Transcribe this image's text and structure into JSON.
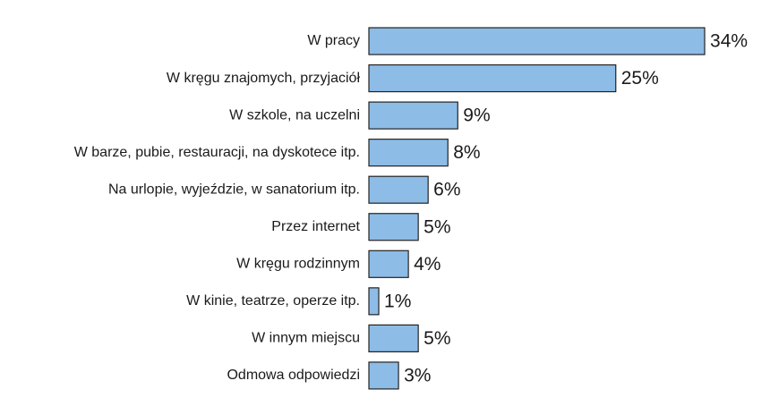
{
  "chart_data": {
    "type": "bar",
    "orientation": "horizontal",
    "categories": [
      "W pracy",
      "W kręgu znajomych, przyjaciół",
      "W szkole, na uczelni",
      "W barze, pubie, restauracji, na dyskotece itp.",
      "Na urlopie, wyjeździe, w sanatorium itp.",
      "Przez internet",
      "W kręgu rodzinnym",
      "W kinie, teatrze, operze itp.",
      "W innym miejscu",
      "Odmowa odpowiedzi"
    ],
    "values": [
      34,
      25,
      9,
      8,
      6,
      5,
      4,
      1,
      5,
      3
    ],
    "value_labels": [
      "34%",
      "25%",
      "9%",
      "8%",
      "6%",
      "5%",
      "4%",
      "1%",
      "5%",
      "3%"
    ],
    "color": "#8dbce6"
  }
}
